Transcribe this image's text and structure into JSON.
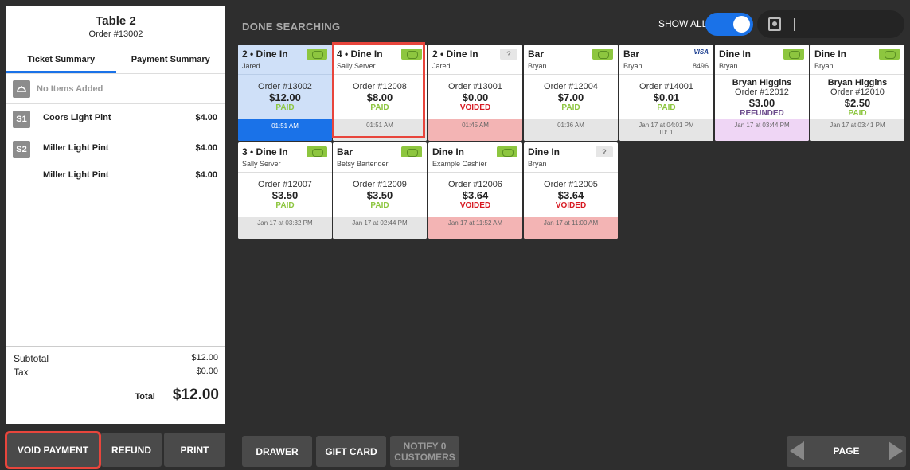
{
  "receipt": {
    "title": "Table 2",
    "order": "Order #13002",
    "tabs": [
      "Ticket Summary",
      "Payment Summary"
    ],
    "no_items": "No Items Added",
    "seats": [
      {
        "label": "S1",
        "items": [
          {
            "name": "Coors Light Pint",
            "price": "$4.00"
          }
        ]
      },
      {
        "label": "S2",
        "items": [
          {
            "name": "Miller Light Pint",
            "price": "$4.00"
          },
          {
            "name": "Miller Light Pint",
            "price": "$4.00"
          }
        ]
      }
    ],
    "subtotal_label": "Subtotal",
    "subtotal": "$12.00",
    "tax_label": "Tax",
    "tax": "$0.00",
    "total_label": "Total",
    "total": "$12.00"
  },
  "left_buttons": {
    "void": "VOID PAYMENT",
    "refund": "REFUND",
    "print": "PRINT"
  },
  "header": {
    "status": "DONE SEARCHING",
    "show_all": "SHOW ALL"
  },
  "bottom": {
    "drawer": "DRAWER",
    "gift_card": "GIFT CARD",
    "notify": "NOTIFY 0 CUSTOMERS",
    "page": "PAGE"
  },
  "orders": [
    {
      "title": "2 • Dine In",
      "server": "Jared",
      "icon": "cash-icon",
      "order": "Order #13002",
      "amount": "$12.00",
      "status": "PAID",
      "time": "01:51 AM",
      "footer_sub": ""
    },
    {
      "title": "4 • Dine In",
      "server": "Sally Server",
      "icon": "cash-icon",
      "order": "Order #12008",
      "amount": "$8.00",
      "status": "PAID",
      "time": "01:51 AM",
      "footer_sub": ""
    },
    {
      "title": "2 • Dine In",
      "server": "Jared",
      "icon": "unknown-payment-icon",
      "icon_text": "?",
      "order": "Order #13001",
      "amount": "$0.00",
      "status": "VOIDED",
      "time": "01:45 AM",
      "footer_sub": ""
    },
    {
      "title": "Bar",
      "server": "Bryan",
      "icon": "cash-icon",
      "order": "Order #12004",
      "amount": "$7.00",
      "status": "PAID",
      "time": "01:36 AM",
      "footer_sub": ""
    },
    {
      "title": "Bar",
      "server": "Bryan",
      "icon": "visa-icon",
      "icon_text": "VISA",
      "last4": "... 8496",
      "order": "Order #14001",
      "amount": "$0.01",
      "status": "PAID",
      "time": "Jan 17 at 04:01 PM",
      "footer_sub": "ID: 1"
    },
    {
      "title": "Dine In",
      "server": "Bryan",
      "icon": "cash-icon",
      "customer": "Bryan Higgins",
      "order": "Order #12012",
      "amount": "$3.00",
      "status": "REFUNDED",
      "time": "Jan 17 at 03:44 PM",
      "footer_sub": ""
    },
    {
      "title": "Dine In",
      "server": "Bryan",
      "icon": "cash-icon",
      "customer": "Bryan Higgins",
      "order": "Order #12010",
      "amount": "$2.50",
      "status": "PAID",
      "time": "Jan 17 at 03:41 PM",
      "footer_sub": ""
    },
    {
      "title": "3 • Dine In",
      "server": "Sally Server",
      "icon": "cash-icon",
      "order": "Order #12007",
      "amount": "$3.50",
      "status": "PAID",
      "time": "Jan 17 at 03:32 PM",
      "footer_sub": ""
    },
    {
      "title": "Bar",
      "server": "Betsy Bartender",
      "icon": "cash-icon",
      "order": "Order #12009",
      "amount": "$3.50",
      "status": "PAID",
      "time": "Jan 17 at 02:44 PM",
      "footer_sub": ""
    },
    {
      "title": "Dine In",
      "server": "Example Cashier",
      "icon": "cash-icon",
      "order": "Order #12006",
      "amount": "$3.64",
      "status": "VOIDED",
      "time": "Jan 17 at 11:52 AM",
      "footer_sub": ""
    },
    {
      "title": "Dine In",
      "server": "Bryan",
      "icon": "unknown-payment-icon",
      "icon_text": "?",
      "order": "Order #12005",
      "amount": "$3.64",
      "status": "VOIDED",
      "time": "Jan 17 at 11:00 AM",
      "footer_sub": ""
    }
  ]
}
